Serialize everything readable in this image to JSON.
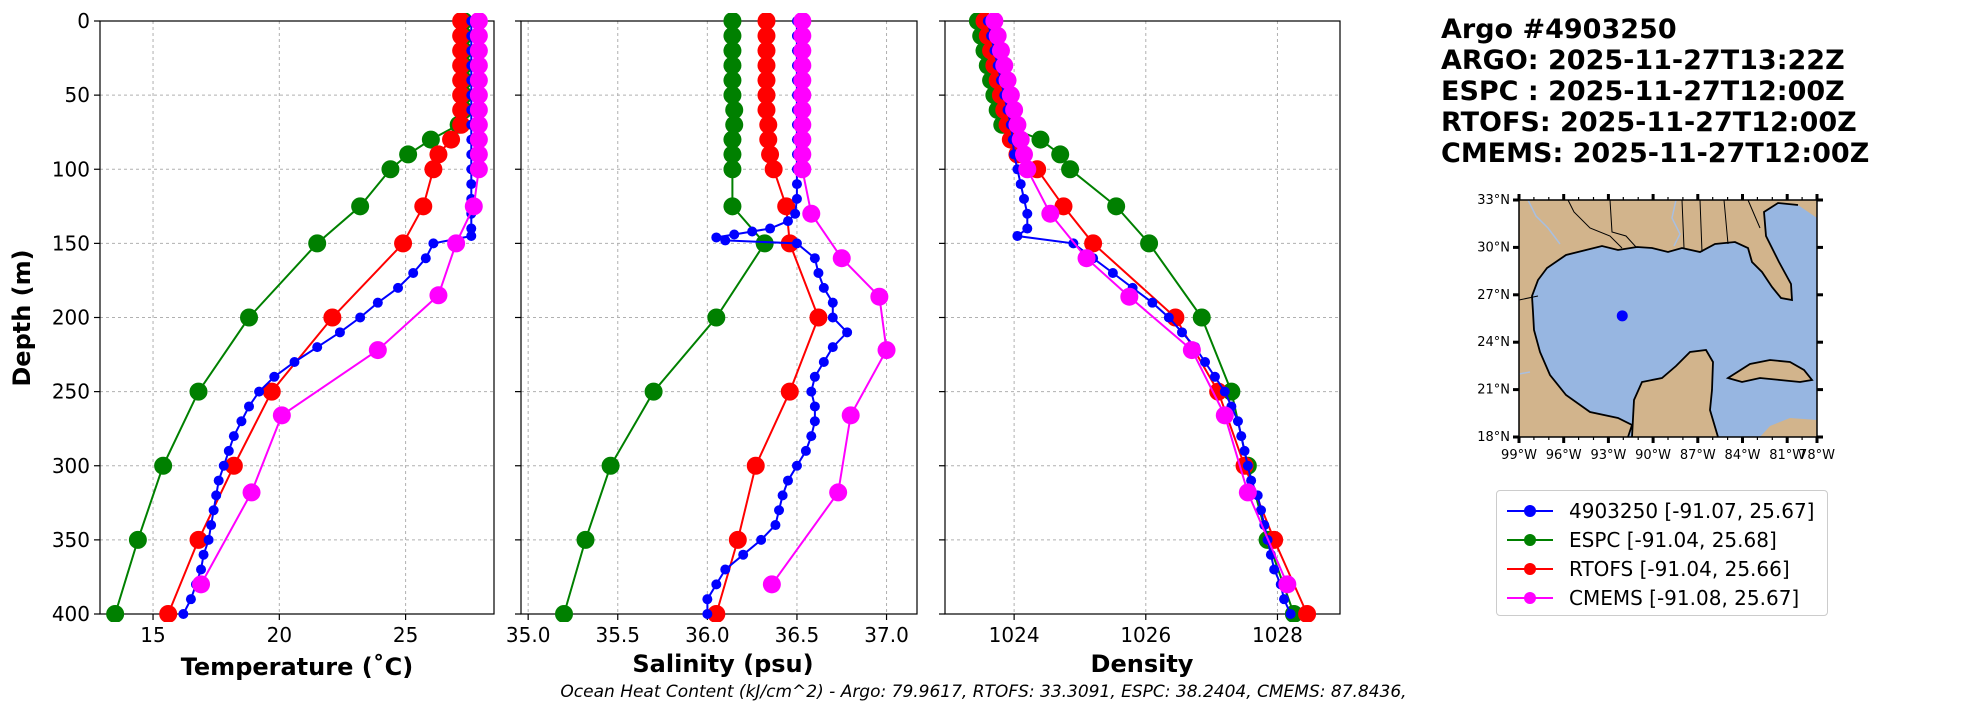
{
  "info": {
    "argo_id": "Argo #4903250",
    "argo_time": "ARGO: 2025-11-27T13:22Z",
    "espc_time": "ESPC : 2025-11-27T12:00Z",
    "rtofs_time": "RTOFS: 2025-11-27T12:00Z",
    "cmems_time": "CMEMS: 2025-11-27T12:00Z"
  },
  "legend": [
    {
      "label": "4903250 [-91.07, 25.67]",
      "color": "#0000ff"
    },
    {
      "label": "ESPC [-91.04, 25.68]",
      "color": "#008000"
    },
    {
      "label": "RTOFS [-91.04, 25.66]",
      "color": "#ff0000"
    },
    {
      "label": "CMEMS [-91.08, 25.67]",
      "color": "#ff00ff"
    }
  ],
  "footer": "Ocean Heat Content (kJ/cm^2) - Argo: 79.9617,  RTOFS: 33.3091,  ESPC: 38.2404,  CMEMS: 87.8436,",
  "map": {
    "lat_labels": [
      "33°N",
      "30°N",
      "27°N",
      "24°N",
      "21°N",
      "18°N"
    ],
    "lon_labels": [
      "99°W",
      "96°W",
      "93°W",
      "90°W",
      "87°W",
      "84°W",
      "81°W",
      "78°W"
    ],
    "float_position": {
      "lon": -91.07,
      "lat": 25.67
    },
    "land_color": "#d2b48c",
    "ocean_color": "#97b6e1"
  },
  "chart_data": [
    {
      "type": "line",
      "id": "temperature",
      "xlabel": "Temperature (˚C)",
      "ylabel": "Depth (m)",
      "xlim": [
        12.9,
        28.5
      ],
      "ylim": [
        400,
        0
      ],
      "xticks": [
        15,
        20,
        25
      ],
      "yticks": [
        0,
        50,
        100,
        150,
        200,
        250,
        300,
        350,
        400
      ],
      "ytick_labels": [
        "0",
        "50",
        "100",
        "150",
        "200",
        "250",
        "300",
        "350",
        "400"
      ],
      "series": [
        {
          "name": "4903250",
          "color": "#0000ff",
          "marker_size": 5,
          "depth": [
            0,
            10,
            20,
            30,
            40,
            50,
            60,
            70,
            80,
            90,
            100,
            110,
            120,
            130,
            140,
            145,
            150,
            160,
            170,
            180,
            190,
            200,
            210,
            220,
            230,
            240,
            250,
            260,
            270,
            280,
            290,
            300,
            310,
            320,
            330,
            340,
            350,
            360,
            370,
            380,
            390,
            400
          ],
          "values": [
            27.6,
            27.6,
            27.6,
            27.6,
            27.6,
            27.6,
            27.6,
            27.6,
            27.6,
            27.6,
            27.6,
            27.6,
            27.6,
            27.6,
            27.6,
            27.6,
            26.1,
            25.8,
            25.3,
            24.7,
            23.9,
            23.2,
            22.4,
            21.5,
            20.6,
            19.8,
            19.2,
            18.8,
            18.5,
            18.2,
            18.0,
            17.8,
            17.6,
            17.5,
            17.4,
            17.3,
            17.2,
            17.0,
            16.9,
            16.7,
            16.5,
            16.2
          ]
        },
        {
          "name": "ESPC",
          "color": "#008000",
          "marker_size": 9,
          "depth": [
            0,
            10,
            20,
            30,
            40,
            50,
            60,
            70,
            80,
            90,
            100,
            125,
            150,
            200,
            250,
            300,
            350,
            400
          ],
          "values": [
            27.3,
            27.3,
            27.3,
            27.3,
            27.3,
            27.3,
            27.3,
            27.1,
            26.0,
            25.1,
            24.4,
            23.2,
            21.5,
            18.8,
            16.8,
            15.4,
            14.4,
            13.5
          ]
        },
        {
          "name": "RTOFS",
          "color": "#ff0000",
          "marker_size": 9,
          "depth": [
            0,
            10,
            20,
            30,
            40,
            50,
            60,
            70,
            80,
            90,
            100,
            125,
            150,
            200,
            250,
            300,
            350,
            400
          ],
          "values": [
            27.2,
            27.2,
            27.2,
            27.2,
            27.2,
            27.2,
            27.2,
            27.2,
            26.8,
            26.3,
            26.1,
            25.7,
            24.9,
            22.1,
            19.7,
            18.2,
            16.8,
            15.6
          ]
        },
        {
          "name": "CMEMS",
          "color": "#ff00ff",
          "marker_size": 9,
          "depth": [
            0,
            10,
            20,
            30,
            40,
            50,
            60,
            70,
            80,
            90,
            100,
            125,
            150,
            185,
            222,
            266,
            318,
            380
          ],
          "values": [
            27.9,
            27.9,
            27.9,
            27.9,
            27.9,
            27.9,
            27.9,
            27.9,
            27.9,
            27.9,
            27.9,
            27.7,
            27.0,
            26.3,
            23.9,
            20.1,
            18.9,
            16.9
          ]
        }
      ]
    },
    {
      "type": "line",
      "id": "salinity",
      "xlabel": "Salinity (psu)",
      "ylabel": "",
      "xlim": [
        34.96,
        37.17
      ],
      "ylim": [
        400,
        0
      ],
      "xticks": [
        35.0,
        35.5,
        36.0,
        36.5,
        37.0
      ],
      "xtick_labels": [
        "35.0",
        "35.5",
        "36.0",
        "36.5",
        "37.0"
      ],
      "series": [
        {
          "name": "4903250",
          "color": "#0000ff",
          "marker_size": 5,
          "depth": [
            0,
            10,
            20,
            30,
            40,
            50,
            60,
            70,
            80,
            90,
            100,
            110,
            120,
            130,
            135,
            140,
            142,
            144,
            146,
            148,
            150,
            160,
            170,
            180,
            190,
            200,
            210,
            220,
            230,
            240,
            250,
            260,
            270,
            280,
            290,
            300,
            310,
            320,
            330,
            340,
            350,
            360,
            370,
            380,
            390,
            400
          ],
          "values": [
            36.5,
            36.5,
            36.5,
            36.5,
            36.5,
            36.5,
            36.5,
            36.5,
            36.5,
            36.5,
            36.5,
            36.5,
            36.5,
            36.49,
            36.45,
            36.35,
            36.25,
            36.15,
            36.05,
            36.1,
            36.5,
            36.6,
            36.62,
            36.65,
            36.7,
            36.7,
            36.78,
            36.7,
            36.65,
            36.6,
            36.58,
            36.6,
            36.6,
            36.58,
            36.55,
            36.5,
            36.45,
            36.42,
            36.4,
            36.38,
            36.3,
            36.2,
            36.1,
            36.05,
            36.0,
            36.0
          ]
        },
        {
          "name": "ESPC",
          "color": "#008000",
          "marker_size": 9,
          "depth": [
            0,
            10,
            20,
            30,
            40,
            50,
            60,
            70,
            80,
            90,
            100,
            125,
            150,
            200,
            250,
            300,
            350,
            400
          ],
          "values": [
            36.14,
            36.14,
            36.14,
            36.14,
            36.14,
            36.14,
            36.15,
            36.15,
            36.14,
            36.14,
            36.14,
            36.14,
            36.32,
            36.05,
            35.7,
            35.46,
            35.32,
            35.2
          ]
        },
        {
          "name": "RTOFS",
          "color": "#ff0000",
          "marker_size": 9,
          "depth": [
            0,
            10,
            20,
            30,
            40,
            50,
            60,
            70,
            80,
            90,
            100,
            125,
            150,
            200,
            250,
            300,
            350,
            400
          ],
          "values": [
            36.33,
            36.33,
            36.33,
            36.33,
            36.33,
            36.33,
            36.33,
            36.34,
            36.34,
            36.35,
            36.37,
            36.44,
            36.46,
            36.62,
            36.46,
            36.27,
            36.17,
            36.05
          ]
        },
        {
          "name": "CMEMS",
          "color": "#ff00ff",
          "marker_size": 9,
          "depth": [
            0,
            10,
            20,
            30,
            40,
            50,
            60,
            70,
            80,
            90,
            100,
            130,
            160,
            186,
            222,
            266,
            318,
            380
          ],
          "values": [
            36.53,
            36.53,
            36.53,
            36.53,
            36.53,
            36.53,
            36.53,
            36.53,
            36.53,
            36.53,
            36.53,
            36.58,
            36.75,
            36.96,
            37.0,
            36.8,
            36.73,
            36.36
          ]
        }
      ]
    },
    {
      "type": "line",
      "id": "density",
      "xlabel": "Density",
      "ylabel": "",
      "xlim": [
        1022.95,
        1028.95
      ],
      "ylim": [
        400,
        0
      ],
      "xticks": [
        1024,
        1026,
        1028
      ],
      "xtick_labels": [
        "1024",
        "1026",
        "1028"
      ],
      "series": [
        {
          "name": "4903250",
          "color": "#0000ff",
          "marker_size": 5,
          "depth": [
            0,
            10,
            20,
            30,
            40,
            50,
            60,
            70,
            80,
            90,
            100,
            110,
            120,
            130,
            140,
            145,
            150,
            160,
            170,
            180,
            190,
            200,
            210,
            220,
            230,
            240,
            250,
            260,
            270,
            280,
            290,
            300,
            310,
            320,
            330,
            340,
            350,
            360,
            370,
            380,
            390,
            400
          ],
          "values": [
            1023.6,
            1023.65,
            1023.7,
            1023.75,
            1023.8,
            1023.85,
            1023.9,
            1023.95,
            1023.98,
            1024.0,
            1024.05,
            1024.1,
            1024.15,
            1024.2,
            1024.2,
            1024.05,
            1024.9,
            1025.2,
            1025.5,
            1025.8,
            1026.1,
            1026.35,
            1026.55,
            1026.75,
            1026.9,
            1027.05,
            1027.2,
            1027.3,
            1027.4,
            1027.45,
            1027.5,
            1027.55,
            1027.6,
            1027.7,
            1027.75,
            1027.8,
            1027.85,
            1027.9,
            1027.95,
            1028.05,
            1028.1,
            1028.2
          ]
        },
        {
          "name": "ESPC",
          "color": "#008000",
          "marker_size": 9,
          "depth": [
            0,
            10,
            20,
            30,
            40,
            50,
            60,
            70,
            80,
            90,
            100,
            125,
            150,
            200,
            250,
            300,
            350,
            400
          ],
          "values": [
            1023.45,
            1023.5,
            1023.55,
            1023.6,
            1023.65,
            1023.7,
            1023.75,
            1023.82,
            1024.4,
            1024.7,
            1024.85,
            1025.55,
            1026.05,
            1026.85,
            1027.3,
            1027.55,
            1027.85,
            1028.25
          ]
        },
        {
          "name": "RTOFS",
          "color": "#ff0000",
          "marker_size": 9,
          "depth": [
            0,
            10,
            20,
            30,
            40,
            50,
            60,
            70,
            80,
            90,
            100,
            125,
            150,
            200,
            250,
            300,
            350,
            400
          ],
          "values": [
            1023.55,
            1023.6,
            1023.65,
            1023.7,
            1023.75,
            1023.8,
            1023.85,
            1023.9,
            1023.95,
            1024.05,
            1024.35,
            1024.75,
            1025.2,
            1026.45,
            1027.1,
            1027.5,
            1027.95,
            1028.45
          ]
        },
        {
          "name": "CMEMS",
          "color": "#ff00ff",
          "marker_size": 9,
          "depth": [
            0,
            10,
            20,
            30,
            40,
            50,
            60,
            70,
            80,
            90,
            100,
            130,
            160,
            186,
            222,
            266,
            318,
            380
          ],
          "values": [
            1023.7,
            1023.75,
            1023.8,
            1023.85,
            1023.9,
            1023.95,
            1024.0,
            1024.05,
            1024.1,
            1024.15,
            1024.2,
            1024.55,
            1025.1,
            1025.75,
            1026.7,
            1027.2,
            1027.55,
            1028.15
          ]
        }
      ]
    }
  ]
}
